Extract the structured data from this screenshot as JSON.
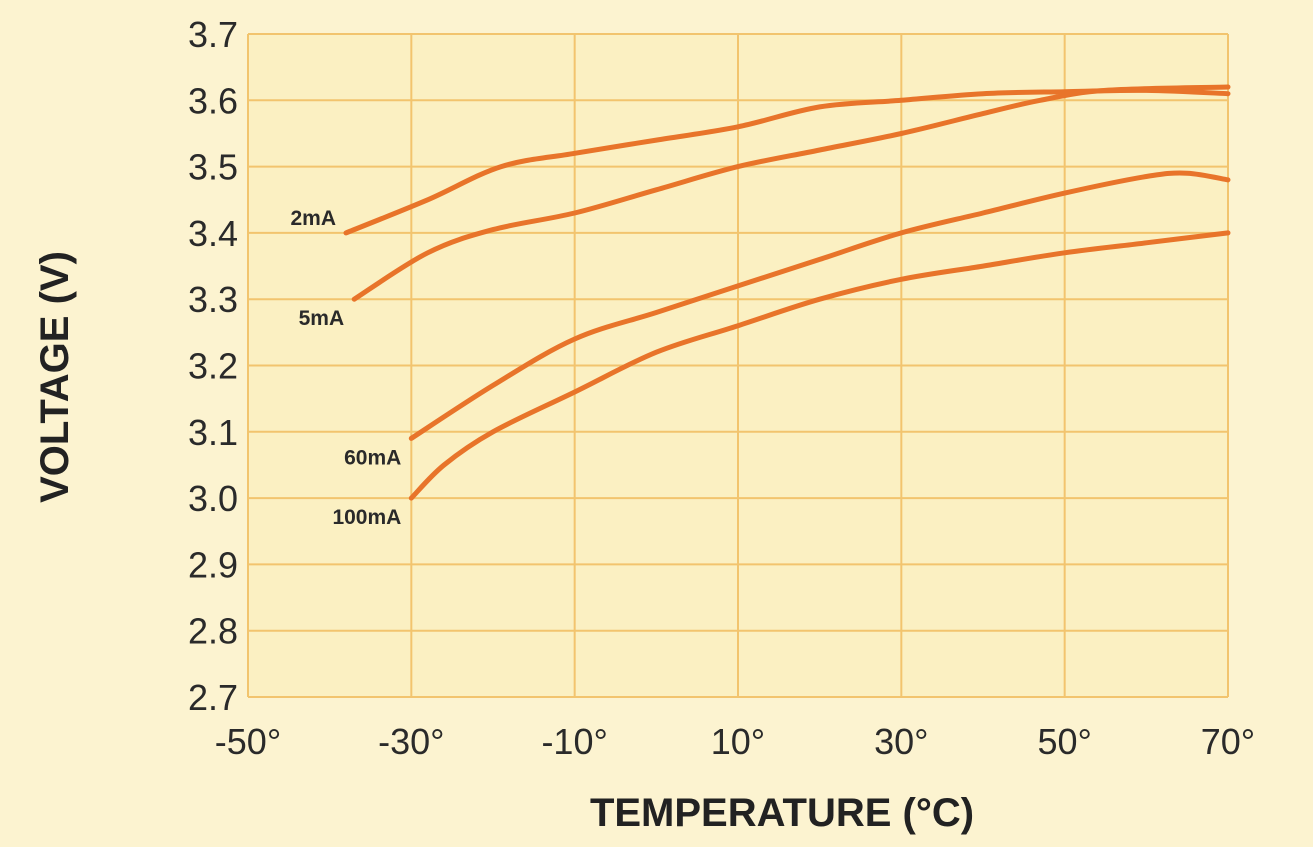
{
  "colors": {
    "background": "#fcf3d0",
    "plot_background": "#fbf0c2",
    "grid": "#f2c46e",
    "line": "#e8742a"
  },
  "chart_data": {
    "type": "line",
    "title": "",
    "xlabel": "TEMPERATURE (°C)",
    "ylabel": "VOLTAGE (V)",
    "xlim": [
      -50,
      70
    ],
    "ylim": [
      2.7,
      3.7
    ],
    "x_ticks": [
      -50,
      -30,
      -10,
      10,
      30,
      50,
      70
    ],
    "x_tick_labels": [
      "-50°",
      "-30°",
      "-10°",
      "10°",
      "30°",
      "50°",
      "70°"
    ],
    "y_ticks": [
      2.7,
      2.8,
      2.9,
      3.0,
      3.1,
      3.2,
      3.3,
      3.4,
      3.5,
      3.6,
      3.7
    ],
    "y_tick_labels": [
      "2.7",
      "2.8",
      "2.9",
      "3.0",
      "3.1",
      "3.2",
      "3.3",
      "3.4",
      "3.5",
      "3.6",
      "3.7"
    ],
    "grid": true,
    "legend": "none",
    "series": [
      {
        "name": "2mA",
        "x": [
          -38,
          -28,
          -19,
          -10,
          0,
          10,
          20,
          30,
          40,
          50,
          60,
          70
        ],
        "y": [
          3.4,
          3.45,
          3.5,
          3.52,
          3.54,
          3.56,
          3.59,
          3.6,
          3.61,
          3.613,
          3.615,
          3.61
        ]
      },
      {
        "name": "5mA",
        "x": [
          -37,
          -28,
          -20,
          -10,
          0,
          10,
          20,
          30,
          40,
          47,
          55,
          70
        ],
        "y": [
          3.3,
          3.37,
          3.405,
          3.43,
          3.465,
          3.5,
          3.525,
          3.55,
          3.58,
          3.6,
          3.615,
          3.62
        ]
      },
      {
        "name": "60mA",
        "x": [
          -30,
          -20,
          -10,
          0,
          10,
          20,
          30,
          40,
          50,
          60,
          65,
          70
        ],
        "y": [
          3.09,
          3.17,
          3.24,
          3.28,
          3.32,
          3.36,
          3.4,
          3.43,
          3.46,
          3.485,
          3.49,
          3.48
        ]
      },
      {
        "name": "100mA",
        "x": [
          -30,
          -26,
          -20,
          -10,
          0,
          10,
          20,
          30,
          40,
          50,
          60,
          70
        ],
        "y": [
          3.0,
          3.05,
          3.1,
          3.16,
          3.22,
          3.26,
          3.3,
          3.33,
          3.35,
          3.37,
          3.385,
          3.4
        ]
      }
    ]
  }
}
